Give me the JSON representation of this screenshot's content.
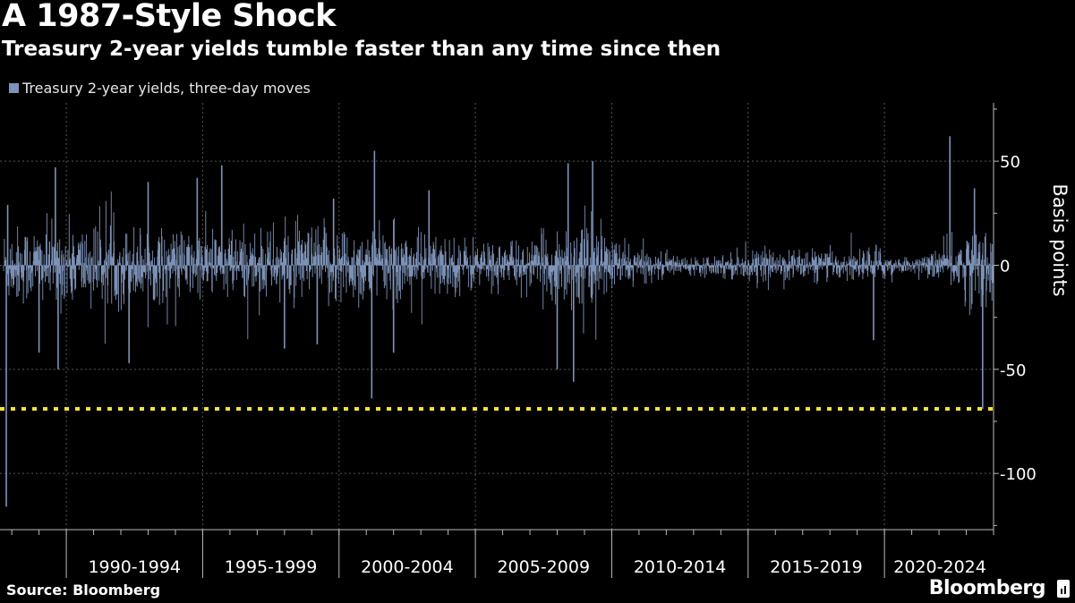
{
  "header": {
    "title": "A 1987-Style Shock",
    "subtitle": "Treasury 2-year yields tumble faster than any time since then"
  },
  "footer": {
    "source": "Source: Bloomberg",
    "brand": "Bloomberg"
  },
  "colors": {
    "background": "#000000",
    "series": "#7d93b8",
    "reference_line": "#f5e52a",
    "grid": "#555555",
    "axis": "#bbbbbb"
  },
  "chart_data": {
    "type": "bar",
    "title": "A 1987-Style Shock",
    "subtitle": "Treasury 2-year yields tumble faster than any time since then",
    "xlabel": "",
    "ylabel": "Basis points",
    "ylim": [
      -127,
      78
    ],
    "xlim": [
      1987.2,
      2023.5
    ],
    "grid": true,
    "legend_position": "top-left",
    "y_ticks": [
      50,
      0,
      -50,
      -100
    ],
    "y_tick_labels": [
      "50",
      "0",
      "-50",
      "-100"
    ],
    "x_period_starts": [
      1989.5,
      1994.5,
      1999.5,
      2004.5,
      2009.5,
      2014.5,
      2019.5
    ],
    "x_tick_labels": [
      "1990-1994",
      "1995-1999",
      "2000-2004",
      "2005-2009",
      "2010-2014",
      "2015-2019",
      "2020-2024"
    ],
    "reference_line": {
      "value": -69,
      "style": "dotted"
    },
    "series": [
      {
        "name": "Treasury 2-year yields, three-day moves",
        "base_amplitude": [
          [
            1987.2,
            14
          ],
          [
            1990.0,
            15
          ],
          [
            1995.0,
            12
          ],
          [
            2000.0,
            15
          ],
          [
            2002.5,
            12
          ],
          [
            2005.0,
            9
          ],
          [
            2006.5,
            8
          ],
          [
            2007.5,
            14
          ],
          [
            2008.5,
            18
          ],
          [
            2009.5,
            10
          ],
          [
            2011.0,
            5
          ],
          [
            2012.5,
            3
          ],
          [
            2014.0,
            5
          ],
          [
            2016.0,
            6
          ],
          [
            2018.0,
            5
          ],
          [
            2019.2,
            7
          ],
          [
            2020.0,
            3
          ],
          [
            2021.0,
            3
          ],
          [
            2022.0,
            10
          ],
          [
            2022.7,
            15
          ],
          [
            2023.5,
            14
          ]
        ],
        "values": [
          {
            "x": 1987.3,
            "y": -116
          },
          {
            "x": 1987.35,
            "y": 29
          },
          {
            "x": 1988.5,
            "y": -42
          },
          {
            "x": 1989.1,
            "y": 47
          },
          {
            "x": 1989.2,
            "y": -50
          },
          {
            "x": 1991.8,
            "y": -47
          },
          {
            "x": 1992.5,
            "y": 40
          },
          {
            "x": 1994.3,
            "y": 42
          },
          {
            "x": 1995.2,
            "y": 48
          },
          {
            "x": 1997.5,
            "y": -40
          },
          {
            "x": 1998.7,
            "y": -38
          },
          {
            "x": 1999.3,
            "y": 32
          },
          {
            "x": 2000.7,
            "y": -64
          },
          {
            "x": 2000.8,
            "y": 55
          },
          {
            "x": 2001.5,
            "y": -42
          },
          {
            "x": 2002.8,
            "y": 36
          },
          {
            "x": 2007.5,
            "y": -50
          },
          {
            "x": 2007.9,
            "y": 49
          },
          {
            "x": 2008.1,
            "y": -56
          },
          {
            "x": 2008.8,
            "y": 50
          },
          {
            "x": 2019.1,
            "y": -36
          },
          {
            "x": 2021.9,
            "y": 62
          },
          {
            "x": 2022.8,
            "y": 37
          },
          {
            "x": 2023.1,
            "y": -69
          }
        ]
      }
    ]
  }
}
